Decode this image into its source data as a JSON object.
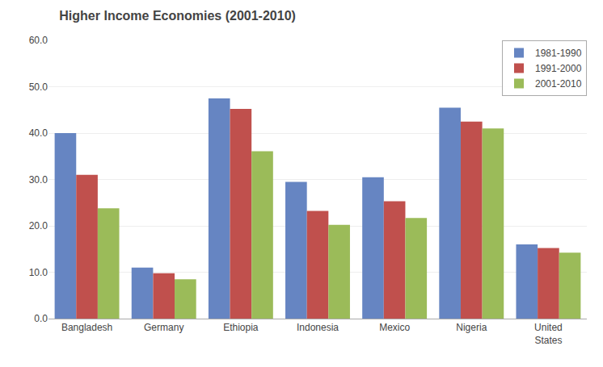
{
  "chart_data": {
    "type": "bar",
    "title": "Higher Income Economies (2001-2010)",
    "categories": [
      "Bangladesh",
      "Germany",
      "Ethiopia",
      "Indonesia",
      "Mexico",
      "Nigeria",
      "United\nStates"
    ],
    "series": [
      {
        "name": "1981-1990",
        "color": "#6685C2",
        "values": [
          40.0,
          11.0,
          47.5,
          29.5,
          30.5,
          45.5,
          16.0
        ]
      },
      {
        "name": "1991-2000",
        "color": "#C0504D",
        "values": [
          31.0,
          9.8,
          45.2,
          23.2,
          25.3,
          42.5,
          15.2
        ]
      },
      {
        "name": "2001-2010",
        "color": "#9BBB59",
        "values": [
          23.8,
          8.5,
          36.1,
          20.2,
          21.7,
          41.0,
          14.2
        ]
      }
    ],
    "ylim": [
      0,
      60
    ],
    "yticks": [
      {
        "value": 0,
        "label": "0.0"
      },
      {
        "value": 10,
        "label": "10.0"
      },
      {
        "value": 20,
        "label": "20.0"
      },
      {
        "value": 30,
        "label": "30.0"
      },
      {
        "value": 40,
        "label": "40.0"
      },
      {
        "value": 50,
        "label": "50.0"
      },
      {
        "value": 60,
        "label": "60.0"
      }
    ],
    "grid": true,
    "legend": "upper right"
  }
}
